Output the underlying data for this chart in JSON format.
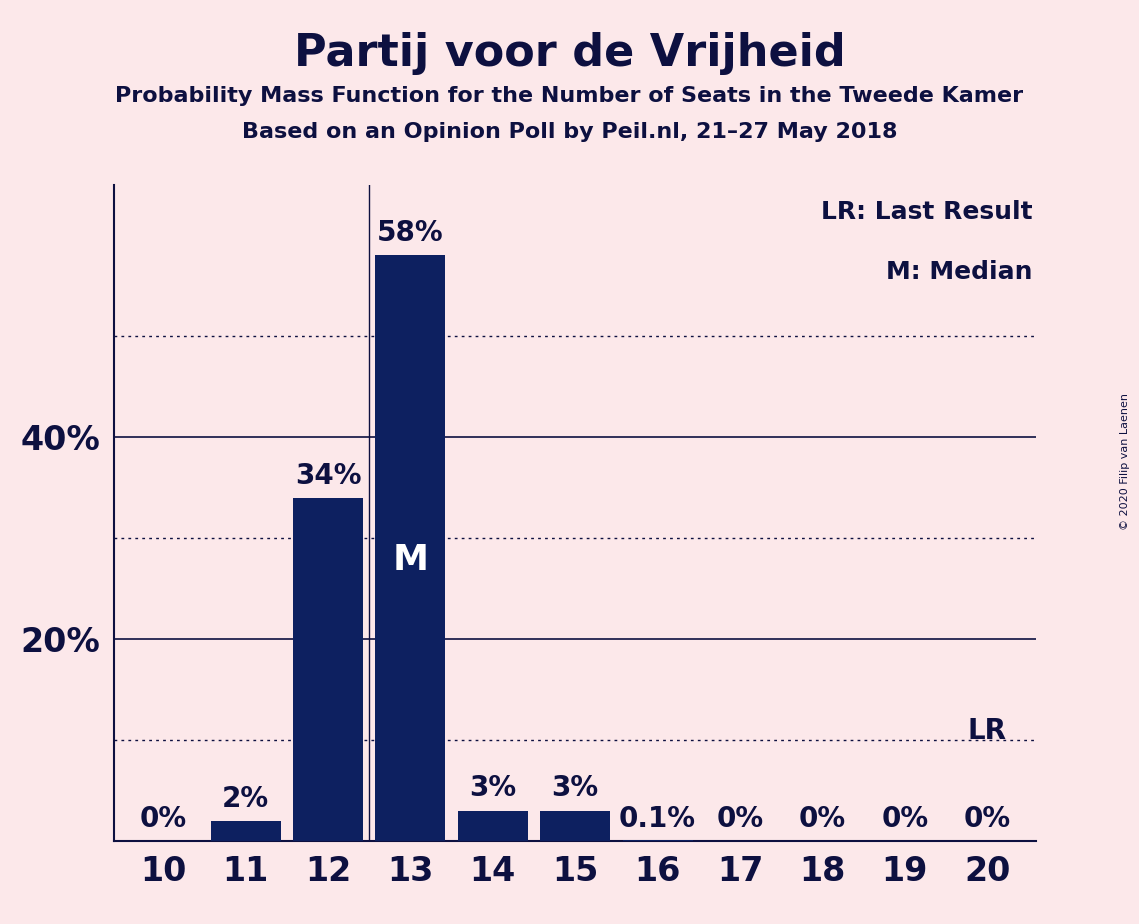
{
  "title": "Partij voor de Vrijheid",
  "subtitle1": "Probability Mass Function for the Number of Seats in the Tweede Kamer",
  "subtitle2": "Based on an Opinion Poll by Peil.nl, 21–27 May 2018",
  "copyright": "© 2020 Filip van Laenen",
  "seats": [
    10,
    11,
    12,
    13,
    14,
    15,
    16,
    17,
    18,
    19,
    20
  ],
  "probabilities": [
    0.0,
    2.0,
    34.0,
    58.0,
    3.0,
    3.0,
    0.1,
    0.0,
    0.0,
    0.0,
    0.0
  ],
  "bar_color": "#0d2060",
  "background_color": "#fce8ea",
  "text_color": "#0d1040",
  "bar_labels": [
    "0%",
    "2%",
    "34%",
    "58%",
    "3%",
    "3%",
    "0.1%",
    "0%",
    "0%",
    "0%",
    "0%"
  ],
  "median_seat": 13,
  "lr_seat": 20,
  "yticks": [
    20,
    40
  ],
  "dotted_lines": [
    10,
    30,
    50
  ],
  "ymax": 65,
  "legend_lr": "LR: Last Result",
  "legend_m": "M: Median"
}
